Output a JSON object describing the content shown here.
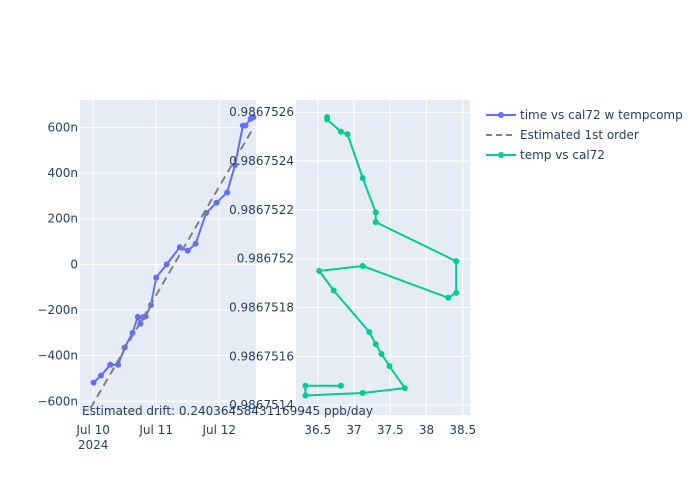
{
  "chart_data": [
    {
      "type": "line",
      "x_type": "date",
      "xlim": [
        "2024-07-09T19:00",
        "2024-07-12T14:00"
      ],
      "ylim": [
        -660,
        720
      ],
      "y_ticks": [
        -600,
        -400,
        -200,
        0,
        200,
        400,
        600
      ],
      "y_tick_labels": [
        "−600n",
        "−400n",
        "−200n",
        "0",
        "200n",
        "400n",
        "600n"
      ],
      "x_ticks": [
        "2024-07-10T00:00",
        "2024-07-11T00:00",
        "2024-07-12T00:00"
      ],
      "x_tick_labels": [
        [
          "Jul 10",
          "2024"
        ],
        [
          "Jul 11",
          ""
        ],
        [
          "Jul 12",
          ""
        ]
      ],
      "grid": true,
      "series": [
        {
          "name": "time vs cal72 w tempcomp",
          "color": "#636efa",
          "mode": "lines+markers",
          "points": [
            [
              "2024-07-10T00:10",
              -518
            ],
            [
              "2024-07-10T03:00",
              -487
            ],
            [
              "2024-07-10T06:30",
              -440
            ],
            [
              "2024-07-10T09:30",
              -440
            ],
            [
              "2024-07-10T12:00",
              -365
            ],
            [
              "2024-07-10T15:00",
              -300
            ],
            [
              "2024-07-10T17:00",
              -230
            ],
            [
              "2024-07-10T18:00",
              -260
            ],
            [
              "2024-07-10T19:00",
              -232
            ],
            [
              "2024-07-10T20:00",
              -228
            ],
            [
              "2024-07-10T22:00",
              -178
            ],
            [
              "2024-07-11T00:00",
              -58
            ],
            [
              "2024-07-11T04:00",
              0
            ],
            [
              "2024-07-11T09:00",
              75
            ],
            [
              "2024-07-11T12:00",
              60
            ],
            [
              "2024-07-11T15:00",
              90
            ],
            [
              "2024-07-11T19:00",
              225
            ],
            [
              "2024-07-11T23:00",
              270
            ],
            [
              "2024-07-12T03:00",
              315
            ],
            [
              "2024-07-12T06:00",
              435
            ],
            [
              "2024-07-12T09:00",
              608
            ],
            [
              "2024-07-12T10:00",
              608
            ],
            [
              "2024-07-12T12:00",
              638
            ],
            [
              "2024-07-12T13:00",
              645
            ]
          ]
        },
        {
          "name": "Estimated 1st order",
          "color": "#808080",
          "mode": "lines",
          "dash": "dash",
          "points": [
            [
              "2024-07-09T23:00",
              -630
            ],
            [
              "2024-07-12T13:00",
              598
            ]
          ]
        }
      ]
    },
    {
      "type": "line",
      "xlim": [
        36.2,
        38.6
      ],
      "ylim": [
        0.98675136,
        0.98675265
      ],
      "x_ticks": [
        36.5,
        37,
        37.5,
        38,
        38.5
      ],
      "x_tick_labels": [
        "36.5",
        "37",
        "37.5",
        "38",
        "38.5"
      ],
      "y_ticks": [
        0.9867514,
        0.9867516,
        0.9867518,
        0.986752,
        0.9867522,
        0.9867524,
        0.9867526
      ],
      "y_tick_labels": [
        "0.9867514",
        "0.9867516",
        "0.9867518",
        "0.986752",
        "0.9867522",
        "0.9867524",
        "0.9867526"
      ],
      "grid": true,
      "series": [
        {
          "name": "temp vs cal72",
          "color": "#00cc96",
          "mode": "lines+markers",
          "points": [
            [
              36.63,
              0.98675258
            ],
            [
              36.63,
              0.98675257
            ],
            [
              36.82,
              0.98675252
            ],
            [
              36.91,
              0.98675251
            ],
            [
              37.12,
              0.98675233
            ],
            [
              37.3,
              0.98675219
            ],
            [
              37.3,
              0.98675215
            ],
            [
              38.41,
              0.98675199
            ],
            [
              38.41,
              0.98675186
            ],
            [
              38.3,
              0.98675184
            ],
            [
              37.12,
              0.98675197
            ],
            [
              36.52,
              0.98675195
            ],
            [
              36.72,
              0.98675187
            ],
            [
              37.21,
              0.9867517
            ],
            [
              37.3,
              0.98675165
            ],
            [
              37.38,
              0.98675161
            ],
            [
              37.49,
              0.98675156
            ],
            [
              37.7,
              0.98675147
            ],
            [
              37.12,
              0.98675145
            ],
            [
              36.33,
              0.98675144
            ],
            [
              36.33,
              0.98675148
            ],
            [
              36.82,
              0.98675148
            ]
          ]
        }
      ]
    }
  ],
  "legend_position": "top-right",
  "annotation": "Estimated drift:  0.24036458431169945 ppb/day"
}
